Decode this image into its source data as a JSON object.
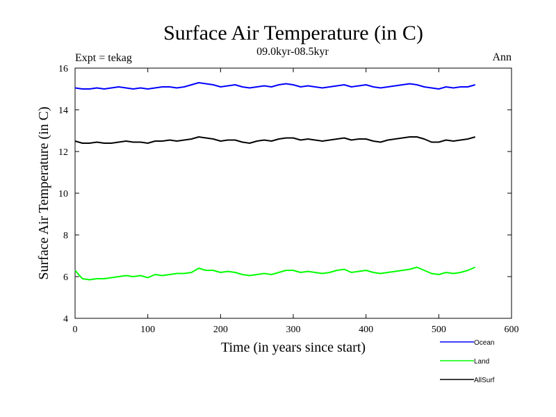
{
  "chart_data": {
    "type": "line",
    "title": "Surface Air Temperature (in C)",
    "subtitle": "09.0kyr-08.5kyr",
    "left_note": "Expt = tekag",
    "right_note": "Ann",
    "xlabel": "Time (in years since start)",
    "ylabel": "Surface Air Temperature (in C)",
    "xlim": [
      0,
      600
    ],
    "ylim": [
      4,
      16
    ],
    "xticks": [
      0,
      100,
      200,
      300,
      400,
      500,
      600
    ],
    "yticks": [
      4,
      6,
      8,
      10,
      12,
      14,
      16
    ],
    "grid": false,
    "legend_position": "bottom-right",
    "series": [
      {
        "name": "Ocean",
        "color": "#0000ff",
        "x": [
          0,
          10,
          20,
          30,
          40,
          50,
          60,
          70,
          80,
          90,
          100,
          110,
          120,
          130,
          140,
          150,
          160,
          170,
          180,
          190,
          200,
          210,
          220,
          230,
          240,
          250,
          260,
          270,
          280,
          290,
          300,
          310,
          320,
          330,
          340,
          350,
          360,
          370,
          380,
          390,
          400,
          410,
          420,
          430,
          440,
          450,
          460,
          470,
          480,
          490,
          500,
          510,
          520,
          530,
          540,
          550
        ],
        "values": [
          15.05,
          15.0,
          15.0,
          15.05,
          15.0,
          15.05,
          15.1,
          15.05,
          15.0,
          15.05,
          15.0,
          15.05,
          15.1,
          15.1,
          15.05,
          15.1,
          15.2,
          15.3,
          15.25,
          15.2,
          15.1,
          15.15,
          15.2,
          15.1,
          15.05,
          15.1,
          15.15,
          15.1,
          15.2,
          15.25,
          15.2,
          15.1,
          15.15,
          15.1,
          15.05,
          15.1,
          15.15,
          15.2,
          15.1,
          15.15,
          15.2,
          15.1,
          15.05,
          15.1,
          15.15,
          15.2,
          15.25,
          15.2,
          15.1,
          15.05,
          15.0,
          15.1,
          15.05,
          15.1,
          15.1,
          15.2
        ]
      },
      {
        "name": "Land",
        "color": "#00ff00",
        "x": [
          0,
          10,
          20,
          30,
          40,
          50,
          60,
          70,
          80,
          90,
          100,
          110,
          120,
          130,
          140,
          150,
          160,
          170,
          180,
          190,
          200,
          210,
          220,
          230,
          240,
          250,
          260,
          270,
          280,
          290,
          300,
          310,
          320,
          330,
          340,
          350,
          360,
          370,
          380,
          390,
          400,
          410,
          420,
          430,
          440,
          450,
          460,
          470,
          480,
          490,
          500,
          510,
          520,
          530,
          540,
          550
        ],
        "values": [
          6.3,
          5.9,
          5.85,
          5.9,
          5.9,
          5.95,
          6.0,
          6.05,
          6.0,
          6.05,
          5.95,
          6.1,
          6.05,
          6.1,
          6.15,
          6.15,
          6.2,
          6.4,
          6.3,
          6.3,
          6.2,
          6.25,
          6.2,
          6.1,
          6.05,
          6.1,
          6.15,
          6.1,
          6.2,
          6.3,
          6.3,
          6.2,
          6.25,
          6.2,
          6.15,
          6.2,
          6.3,
          6.35,
          6.2,
          6.25,
          6.3,
          6.2,
          6.15,
          6.2,
          6.25,
          6.3,
          6.35,
          6.45,
          6.3,
          6.15,
          6.1,
          6.2,
          6.15,
          6.2,
          6.3,
          6.45
        ]
      },
      {
        "name": "AllSurf",
        "color": "#000000",
        "x": [
          0,
          10,
          20,
          30,
          40,
          50,
          60,
          70,
          80,
          90,
          100,
          110,
          120,
          130,
          140,
          150,
          160,
          170,
          180,
          190,
          200,
          210,
          220,
          230,
          240,
          250,
          260,
          270,
          280,
          290,
          300,
          310,
          320,
          330,
          340,
          350,
          360,
          370,
          380,
          390,
          400,
          410,
          420,
          430,
          440,
          450,
          460,
          470,
          480,
          490,
          500,
          510,
          520,
          530,
          540,
          550
        ],
        "values": [
          12.5,
          12.4,
          12.4,
          12.45,
          12.4,
          12.4,
          12.45,
          12.5,
          12.45,
          12.45,
          12.4,
          12.5,
          12.5,
          12.55,
          12.5,
          12.55,
          12.6,
          12.7,
          12.65,
          12.6,
          12.5,
          12.55,
          12.55,
          12.45,
          12.4,
          12.5,
          12.55,
          12.5,
          12.6,
          12.65,
          12.65,
          12.55,
          12.6,
          12.55,
          12.5,
          12.55,
          12.6,
          12.65,
          12.55,
          12.6,
          12.6,
          12.5,
          12.45,
          12.55,
          12.6,
          12.65,
          12.7,
          12.7,
          12.6,
          12.45,
          12.45,
          12.55,
          12.5,
          12.55,
          12.6,
          12.7
        ]
      }
    ]
  }
}
